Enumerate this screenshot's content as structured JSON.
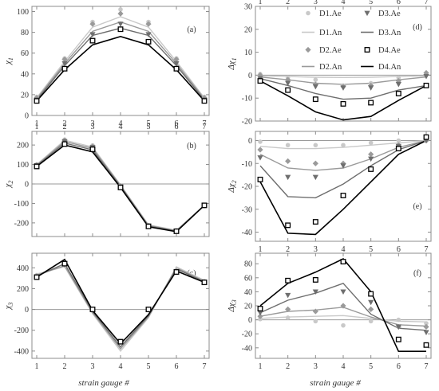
{
  "xlabel": "strain gauge #",
  "legend": {
    "entries": [
      {
        "label": "D1.Ae",
        "kind": "marker",
        "marker": "circle",
        "color": "#c9c9c9"
      },
      {
        "label": "D3.Ae",
        "kind": "marker",
        "marker": "triangle",
        "color": "#6e6e6e"
      },
      {
        "label": "D1.An",
        "kind": "line",
        "color": "#c9c9c9"
      },
      {
        "label": "D3.An",
        "kind": "line",
        "color": "#6e6e6e"
      },
      {
        "label": "D2.Ae",
        "kind": "marker",
        "marker": "diamond",
        "color": "#9a9a9a"
      },
      {
        "label": "D4.Ae",
        "kind": "marker",
        "marker": "square",
        "color": "#000000"
      },
      {
        "label": "D2.An",
        "kind": "line",
        "color": "#9a9a9a"
      },
      {
        "label": "D4.An",
        "kind": "line",
        "color": "#000000"
      }
    ]
  },
  "colors": {
    "D1": "#c9c9c9",
    "D2": "#9a9a9a",
    "D3": "#6e6e6e",
    "D4": "#000000",
    "zero_line": "#9a9a9a"
  },
  "chart_data": [
    {
      "id": "a",
      "panel_label": "(a)",
      "ylabel_main": "χ",
      "ylabel_sub": "1",
      "type": "line",
      "x": [
        1,
        2,
        3,
        4,
        5,
        6,
        7
      ],
      "ylim": [
        0,
        105
      ],
      "yticks": [
        0,
        20,
        40,
        60,
        80,
        100
      ],
      "xtick_labels_position": "bottom",
      "series": [
        {
          "name": "D1",
          "analytic": [
            17,
            52,
            85,
            95,
            85,
            52,
            17
          ],
          "experimental": [
            18,
            55,
            90,
            102,
            90,
            55,
            18
          ]
        },
        {
          "name": "D2",
          "analytic": [
            16,
            50,
            81,
            90,
            81,
            50,
            16
          ],
          "experimental": [
            17,
            54,
            88,
            98,
            88,
            54,
            17
          ]
        },
        {
          "name": "D3",
          "analytic": [
            15,
            48,
            77,
            84,
            77,
            48,
            15
          ],
          "experimental": [
            15,
            50,
            78,
            88,
            78,
            50,
            15
          ]
        },
        {
          "name": "D4",
          "analytic": [
            14,
            44,
            68,
            76,
            68,
            44,
            14
          ],
          "experimental": [
            14,
            45,
            72,
            83,
            71,
            45,
            14
          ]
        }
      ]
    },
    {
      "id": "b",
      "panel_label": "(b)",
      "ylabel_main": "χ",
      "ylabel_sub": "2",
      "type": "line",
      "x": [
        1,
        2,
        3,
        4,
        5,
        6,
        7
      ],
      "ylim": [
        -270,
        270
      ],
      "yticks": [
        -200,
        -100,
        0,
        100,
        200
      ],
      "zero_line": true,
      "xtick_labels_position": "top",
      "series": [
        {
          "name": "D1",
          "analytic": [
            100,
            225,
            190,
            -5,
            -210,
            -238,
            -110
          ],
          "experimental": [
            100,
            228,
            198,
            -8,
            -212,
            -240,
            -110
          ]
        },
        {
          "name": "D2",
          "analytic": [
            97,
            218,
            183,
            -8,
            -213,
            -240,
            -110
          ],
          "experimental": [
            98,
            224,
            193,
            -10,
            -214,
            -241,
            -110
          ]
        },
        {
          "name": "D3",
          "analytic": [
            94,
            210,
            175,
            -12,
            -216,
            -242,
            -110
          ],
          "experimental": [
            95,
            218,
            188,
            -14,
            -215,
            -242,
            -110
          ]
        },
        {
          "name": "D4",
          "analytic": [
            90,
            200,
            165,
            -18,
            -220,
            -245,
            -110
          ],
          "experimental": [
            90,
            205,
            178,
            -18,
            -218,
            -243,
            -110
          ]
        }
      ]
    },
    {
      "id": "c",
      "panel_label": "(c)",
      "ylabel_main": "χ",
      "ylabel_sub": "3",
      "type": "line",
      "x": [
        1,
        2,
        3,
        4,
        5,
        6,
        7
      ],
      "ylim": [
        -470,
        540
      ],
      "yticks": [
        -400,
        -200,
        0,
        200,
        400
      ],
      "zero_line": true,
      "xtick_labels_position": "bottom",
      "series": [
        {
          "name": "D1",
          "analytic": [
            340,
            410,
            -40,
            -400,
            -80,
            410,
            280
          ],
          "experimental": [
            330,
            420,
            0,
            -310,
            0,
            380,
            270
          ]
        },
        {
          "name": "D2",
          "analytic": [
            330,
            420,
            -30,
            -380,
            -70,
            400,
            270
          ],
          "experimental": [
            320,
            430,
            0,
            -310,
            0,
            370,
            265
          ]
        },
        {
          "name": "D3",
          "analytic": [
            320,
            440,
            -20,
            -360,
            -60,
            390,
            265
          ],
          "experimental": [
            315,
            440,
            0,
            -310,
            0,
            365,
            262
          ]
        },
        {
          "name": "D4",
          "analytic": [
            310,
            480,
            -10,
            -330,
            -50,
            370,
            260
          ],
          "experimental": [
            310,
            440,
            0,
            -310,
            0,
            360,
            260
          ]
        }
      ]
    },
    {
      "id": "d",
      "panel_label": "(d)",
      "ylabel_main": "Δχ",
      "ylabel_sub": "1",
      "type": "line",
      "x": [
        1,
        2,
        3,
        4,
        5,
        6,
        7
      ],
      "ylim": [
        -20,
        30
      ],
      "yticks": [
        -20,
        -10,
        0,
        10,
        20,
        30
      ],
      "zero_line": true,
      "xtick_labels_position": "top",
      "series": [
        {
          "name": "D1",
          "analytic": [
            -0.3,
            -0.6,
            -0.9,
            -1.0,
            -0.9,
            -0.6,
            -0.3
          ],
          "experimental": [
            0.5,
            -1.0,
            -2.0,
            -4.5,
            -3.5,
            -1.0,
            0.5
          ]
        },
        {
          "name": "D2",
          "analytic": [
            -0.8,
            -2.0,
            -3.5,
            -4.0,
            -3.5,
            -2.0,
            -0.8
          ],
          "experimental": [
            0.0,
            -2.0,
            -4.0,
            -5.0,
            -4.5,
            -2.5,
            1.0
          ]
        },
        {
          "name": "D3",
          "analytic": [
            -1.5,
            -4.5,
            -8.0,
            -10.5,
            -10.0,
            -6.5,
            -4.5
          ],
          "experimental": [
            -1.5,
            -3.5,
            -5.0,
            -5.5,
            -5.5,
            -4.0,
            -0.5
          ]
        },
        {
          "name": "D4",
          "analytic": [
            -2.5,
            -9.0,
            -16.0,
            -19.5,
            -18.0,
            -11.0,
            -4.5
          ],
          "experimental": [
            -2.5,
            -6.5,
            -10.5,
            -12.5,
            -12.0,
            -8.0,
            -4.5
          ]
        }
      ]
    },
    {
      "id": "e",
      "panel_label": "(e)",
      "ylabel_main": "Δχ",
      "ylabel_sub": "2",
      "type": "line",
      "x": [
        1,
        2,
        3,
        4,
        5,
        6,
        7
      ],
      "ylim": [
        -44,
        4
      ],
      "yticks": [
        -40,
        -30,
        -20,
        -10,
        0
      ],
      "zero_line": true,
      "xtick_labels_position": "bottom",
      "series": [
        {
          "name": "D1",
          "analytic": [
            -2.5,
            -3.5,
            -3.5,
            -3.0,
            -2.0,
            -1.0,
            0.0
          ],
          "experimental": [
            -0.5,
            -2.0,
            -2.0,
            -2.0,
            -1.0,
            0.0,
            0.0
          ]
        },
        {
          "name": "D2",
          "analytic": [
            -6.0,
            -12.0,
            -13.0,
            -12.0,
            -8.0,
            -3.0,
            0.0
          ],
          "experimental": [
            -4.0,
            -9.0,
            -10.0,
            -10.0,
            -6.0,
            -2.0,
            0.0
          ]
        },
        {
          "name": "D3",
          "analytic": [
            -11.0,
            -24.5,
            -25.0,
            -19.0,
            -11.0,
            -4.0,
            0.0
          ],
          "experimental": [
            -7.5,
            -16.0,
            -16.0,
            -11.0,
            -8.0,
            -2.5,
            0.0
          ]
        },
        {
          "name": "D4",
          "analytic": [
            -18.0,
            -40.5,
            -41.0,
            -30.0,
            -18.0,
            -6.0,
            0.0
          ],
          "experimental": [
            -17.0,
            -37.0,
            -35.5,
            -24.0,
            -12.5,
            -3.5,
            1.5
          ]
        }
      ]
    },
    {
      "id": "f",
      "panel_label": "(f)",
      "ylabel_main": "Δχ",
      "ylabel_sub": "3",
      "type": "line",
      "x": [
        1,
        2,
        3,
        4,
        5,
        6,
        7
      ],
      "ylim": [
        -55,
        95
      ],
      "yticks": [
        -40,
        -20,
        0,
        20,
        40,
        60,
        80
      ],
      "zero_line": true,
      "xtick_labels_position": "bottom",
      "series": [
        {
          "name": "D1",
          "analytic": [
            2,
            4,
            5,
            6,
            2,
            -2,
            -3
          ],
          "experimental": [
            1,
            3,
            -2,
            -8,
            -2,
            0,
            -5
          ]
        },
        {
          "name": "D2",
          "analytic": [
            5,
            12,
            14,
            18,
            4,
            -7,
            -9
          ],
          "experimental": [
            5,
            15,
            12,
            20,
            15,
            -10,
            -10
          ]
        },
        {
          "name": "D3",
          "analytic": [
            10,
            28,
            38,
            52,
            8,
            -12,
            -15
          ],
          "experimental": [
            10,
            35,
            40,
            40,
            25,
            -10,
            -18
          ]
        },
        {
          "name": "D4",
          "analytic": [
            20,
            52,
            68,
            87,
            40,
            -45,
            -45
          ],
          "experimental": [
            16,
            56,
            57,
            83,
            37,
            -28,
            -36
          ]
        }
      ]
    }
  ]
}
